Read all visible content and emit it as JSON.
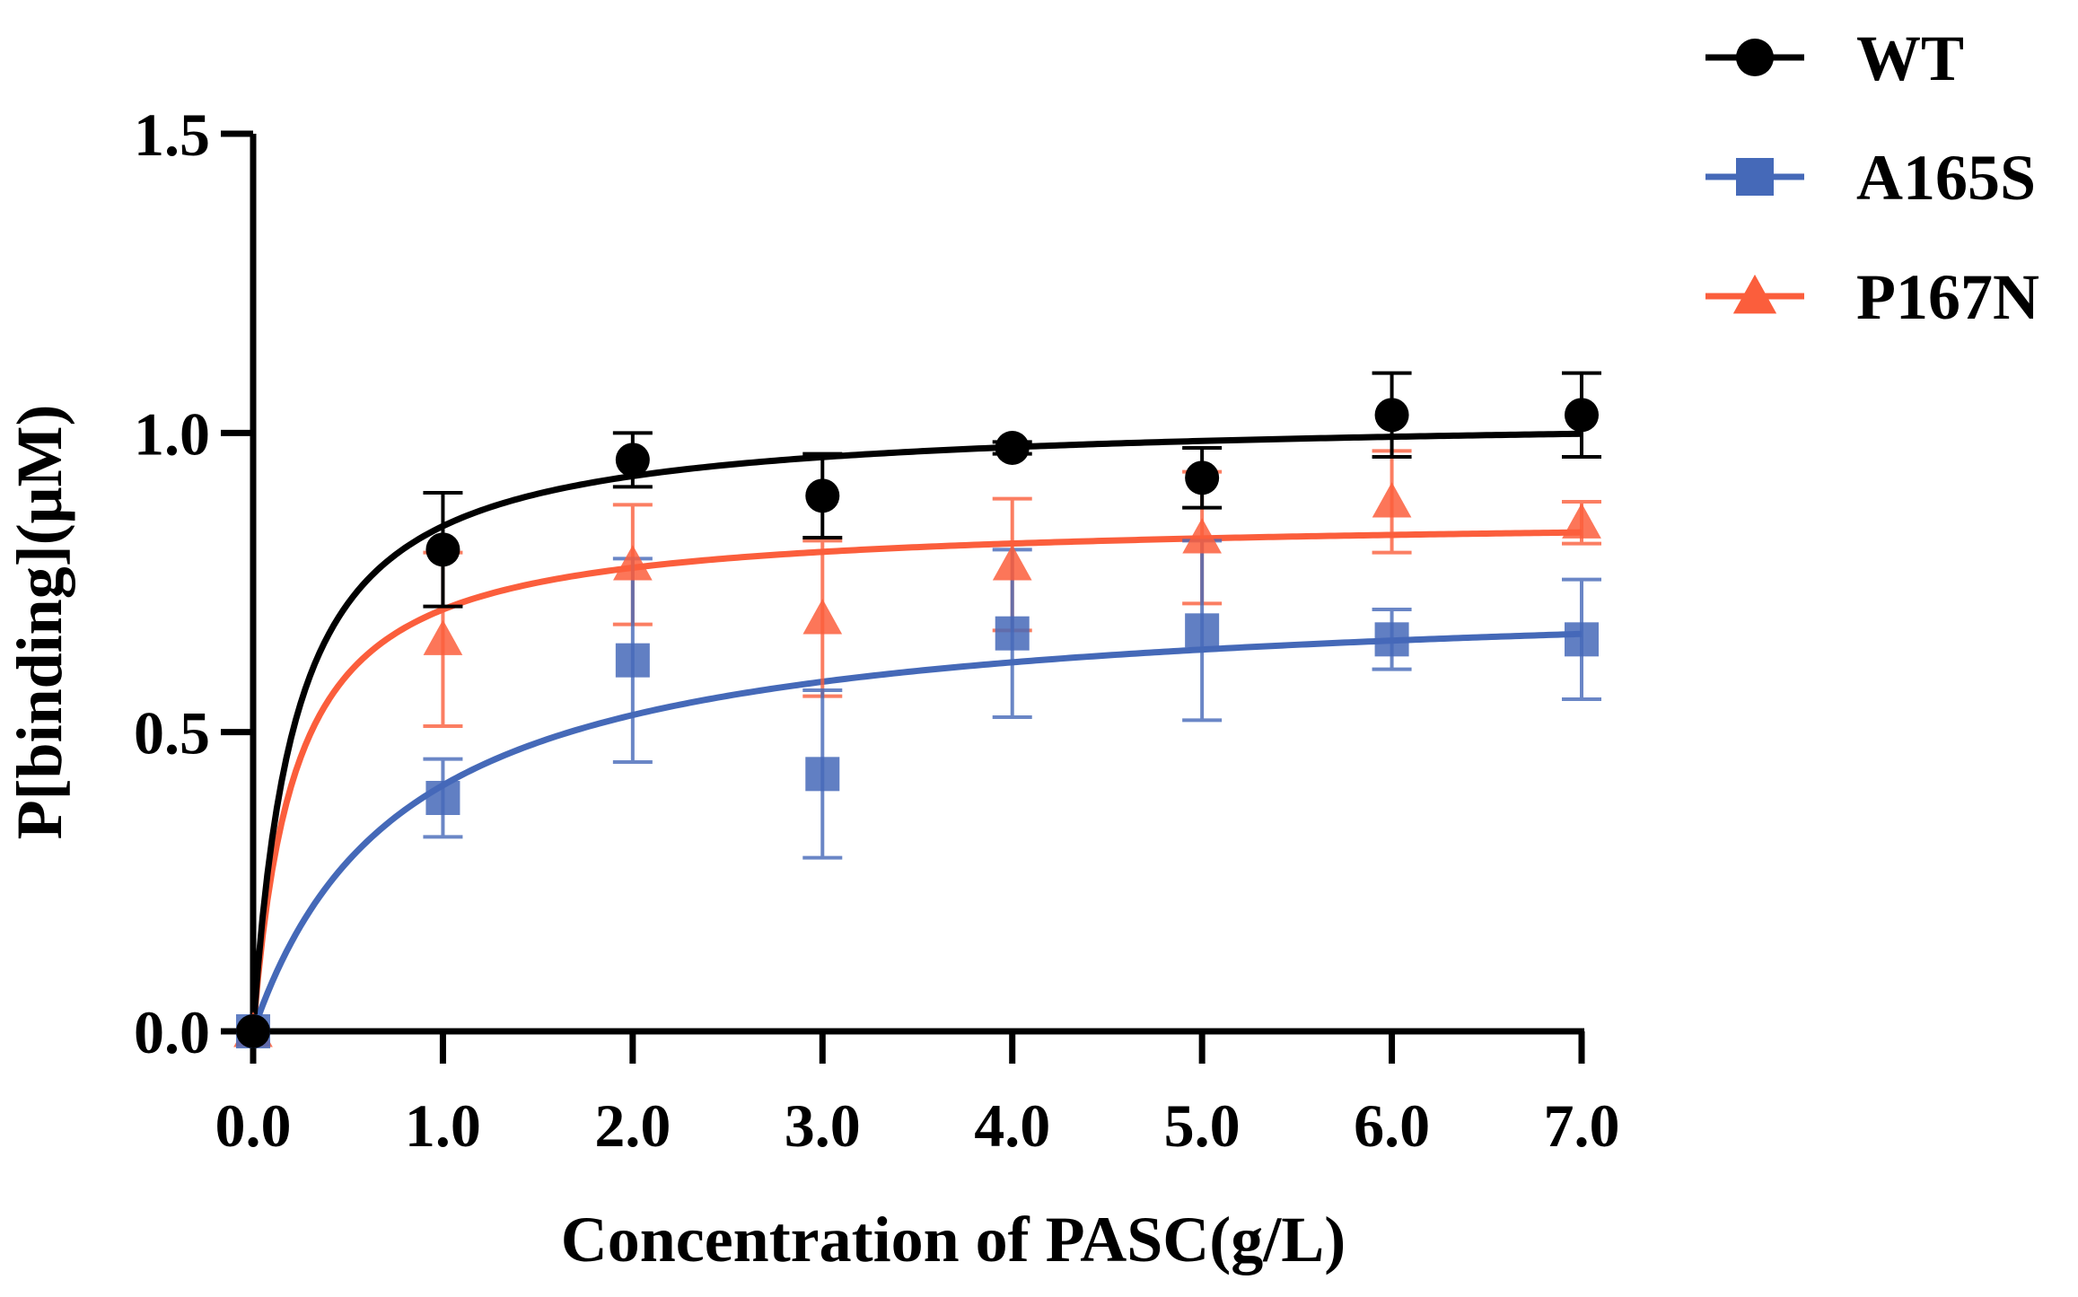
{
  "chart_data": {
    "type": "scatter",
    "title": "",
    "xlabel": "Concentration of PASC(g/L)",
    "ylabel": "P[binding](μM)",
    "xlim": [
      0,
      7
    ],
    "ylim": [
      0,
      1.5
    ],
    "x_ticks": [
      {
        "value": 0,
        "label": "0.0"
      },
      {
        "value": 1,
        "label": "1.0"
      },
      {
        "value": 2,
        "label": "2.0"
      },
      {
        "value": 3,
        "label": "3.0"
      },
      {
        "value": 4,
        "label": "4.0"
      },
      {
        "value": 5,
        "label": "5.0"
      },
      {
        "value": 6,
        "label": "6.0"
      },
      {
        "value": 7,
        "label": "7.0"
      }
    ],
    "y_ticks": [
      {
        "value": 0,
        "label": "0.0"
      },
      {
        "value": 0.5,
        "label": "0.5"
      },
      {
        "value": 1.0,
        "label": "1.0"
      },
      {
        "value": 1.5,
        "label": "1.5"
      }
    ],
    "legend_position": "top-right",
    "grid": false,
    "series": [
      {
        "name": "WT",
        "color": "#000000",
        "marker": "circle",
        "x": [
          0,
          1,
          2,
          3,
          4,
          5,
          6,
          7
        ],
        "y": [
          0,
          0.805,
          0.955,
          0.895,
          0.975,
          0.925,
          1.03,
          1.03
        ],
        "err": [
          0,
          0.095,
          0.045,
          0.07,
          0.01,
          0.05,
          0.07,
          0.07
        ],
        "fit": {
          "model": "one-site-binding",
          "bmax": 1.03,
          "kd": 0.22
        }
      },
      {
        "name": "A165S",
        "color": "#4569B8",
        "marker": "square",
        "x": [
          0,
          1,
          2,
          3,
          4,
          5,
          6,
          7
        ],
        "y": [
          0,
          0.39,
          0.62,
          0.43,
          0.665,
          0.67,
          0.655,
          0.655
        ],
        "err": [
          0,
          0.065,
          0.17,
          0.14,
          0.14,
          0.15,
          0.05,
          0.1
        ],
        "fit": {
          "model": "one-site-binding",
          "bmax": 0.74,
          "kd": 0.8
        }
      },
      {
        "name": "P167N",
        "color": "#FB5E3C",
        "marker": "triangle",
        "x": [
          0,
          1,
          2,
          3,
          4,
          5,
          6,
          7
        ],
        "y": [
          0,
          0.655,
          0.78,
          0.69,
          0.78,
          0.825,
          0.885,
          0.85
        ],
        "err": [
          0,
          0.145,
          0.1,
          0.13,
          0.11,
          0.11,
          0.085,
          0.035
        ],
        "fit": {
          "model": "one-site-binding",
          "bmax": 0.86,
          "kd": 0.22
        }
      }
    ]
  }
}
